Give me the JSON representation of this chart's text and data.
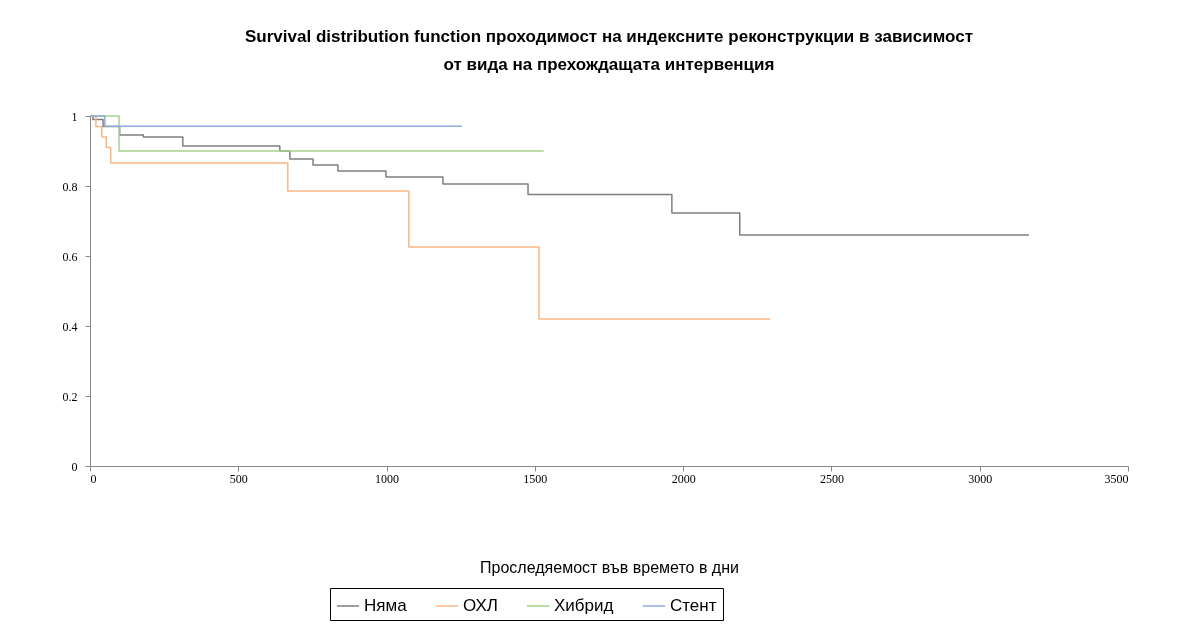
{
  "chart_data": {
    "type": "step",
    "title": "Survival distribution function проходимост на индексните реконструкции в зависимост от вида на прехождащата интервенция",
    "xlabel": "Проследяемост във времето в дни",
    "xlim": [
      0,
      3500
    ],
    "xticks": [
      0,
      500,
      1000,
      1500,
      2000,
      2500,
      3000,
      3500
    ],
    "ylim": [
      0,
      1
    ],
    "yticks": [
      0,
      0.2,
      0.4,
      0.6,
      0.8,
      1
    ],
    "grid": false,
    "legend": "bottom",
    "series": [
      {
        "name": "Няма",
        "color": "#7f7f7f",
        "x": [
          0,
          10,
          44,
          100,
          180,
          313,
          617,
          640,
          674,
          752,
          836,
          998,
          1190,
          1477,
          1962,
          2191,
          3166
        ],
        "values": [
          1,
          0.99,
          0.97,
          0.946,
          0.94,
          0.914,
          0.914,
          0.9,
          0.877,
          0.86,
          0.843,
          0.826,
          0.806,
          0.776,
          0.723,
          0.66,
          0.66
        ]
      },
      {
        "name": "ОХЛ",
        "color": "#f8b886",
        "x": [
          0,
          20,
          40,
          55,
          70,
          667,
          1075,
          1514,
          2293
        ],
        "values": [
          1,
          0.97,
          0.94,
          0.91,
          0.866,
          0.786,
          0.626,
          0.42,
          0.42
        ]
      },
      {
        "name": "Хибрид",
        "color": "#a9d18e",
        "x": [
          0,
          98,
          1530
        ],
        "values": [
          1,
          0.9,
          0.9
        ]
      },
      {
        "name": "Стент",
        "color": "#8faadc",
        "x": [
          0,
          50,
          1254
        ],
        "values": [
          1,
          0.971,
          0.971
        ]
      }
    ]
  }
}
